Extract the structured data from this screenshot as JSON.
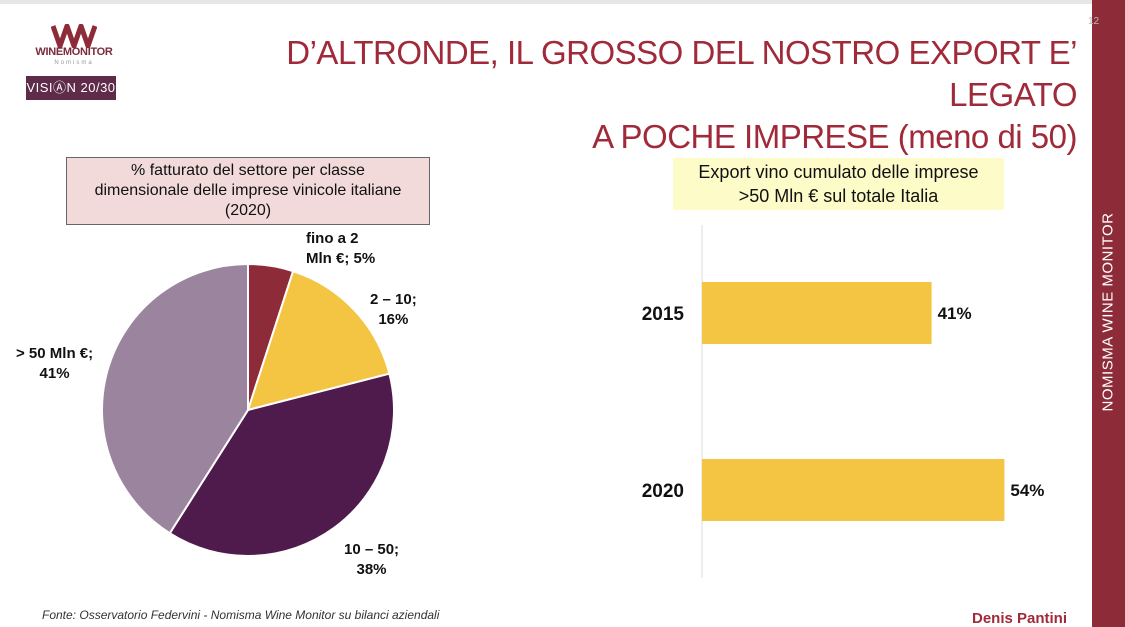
{
  "brand": {
    "logo_word": "WINEMONITOR",
    "logo_sub": "Nomisma",
    "vision": "VISIⒶN 20/30",
    "sidebar": "NOMISMA WINE MONITOR",
    "page_number": "12",
    "sidebar_color": "#8e2b38"
  },
  "title": {
    "line1": "D’ALTRONDE, IL GROSSO DEL NOSTRO EXPORT E’ LEGATO",
    "line2": "A POCHE IMPRESE (meno di 50)"
  },
  "footer": {
    "source": "Fonte: Osservatorio Federvini - Nomisma Wine Monitor su bilanci aziendali",
    "author": "Denis Pantini"
  },
  "chart_data": [
    {
      "type": "pie",
      "title_lines": [
        "% fatturato del settore per classe",
        "dimensionale delle imprese vinicole italiane",
        "(2020)"
      ],
      "slices": [
        {
          "label_lines": [
            "fino a 2",
            "Mln €; 5%"
          ],
          "category": "fino a 2 Mln €",
          "value": 5,
          "color": "#8e2b38"
        },
        {
          "label_lines": [
            "2 – 10;",
            "16%"
          ],
          "category": "2 – 10",
          "value": 16,
          "color": "#f4c443"
        },
        {
          "label_lines": [
            "10 – 50;",
            "38%"
          ],
          "category": "10 – 50",
          "value": 38,
          "color": "#4f1a4c"
        },
        {
          "label_lines": [
            "> 50 Mln €;",
            "41%"
          ],
          "category": "> 50 Mln €",
          "value": 41,
          "color": "#9a849e"
        }
      ]
    },
    {
      "type": "bar",
      "orientation": "horizontal",
      "title_lines": [
        "Export vino cumulato delle imprese",
        ">50 Mln € sul totale Italia"
      ],
      "categories": [
        "2015",
        "2020"
      ],
      "values": [
        41,
        54
      ],
      "value_labels": [
        "41%",
        "54%"
      ],
      "color": "#f4c443"
    }
  ]
}
